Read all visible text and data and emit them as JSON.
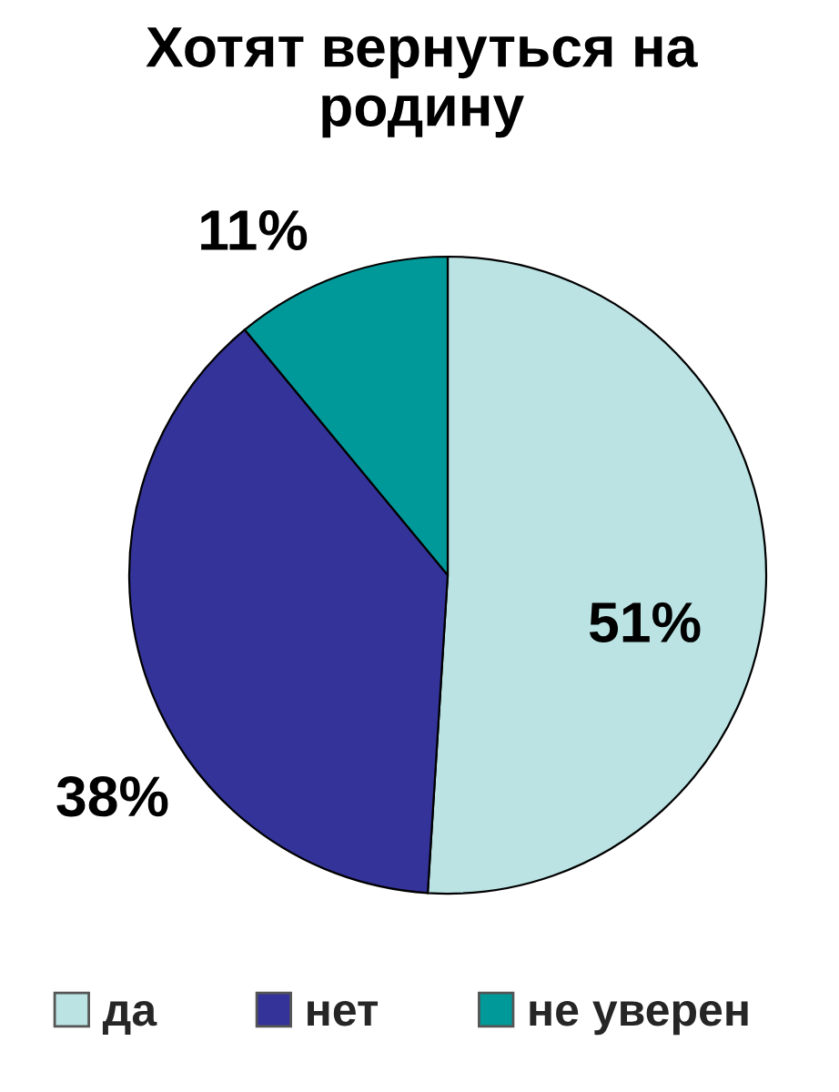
{
  "chart_data": {
    "type": "pie",
    "title": "Хотят вернуться на родину",
    "categories": [
      "да",
      "нет",
      "не уверен"
    ],
    "values": [
      51,
      38,
      11
    ],
    "colors": [
      "#bbe3e4",
      "#333399",
      "#009999"
    ],
    "value_labels": [
      "51%",
      "38%",
      "11%"
    ],
    "legend": "bottom"
  }
}
